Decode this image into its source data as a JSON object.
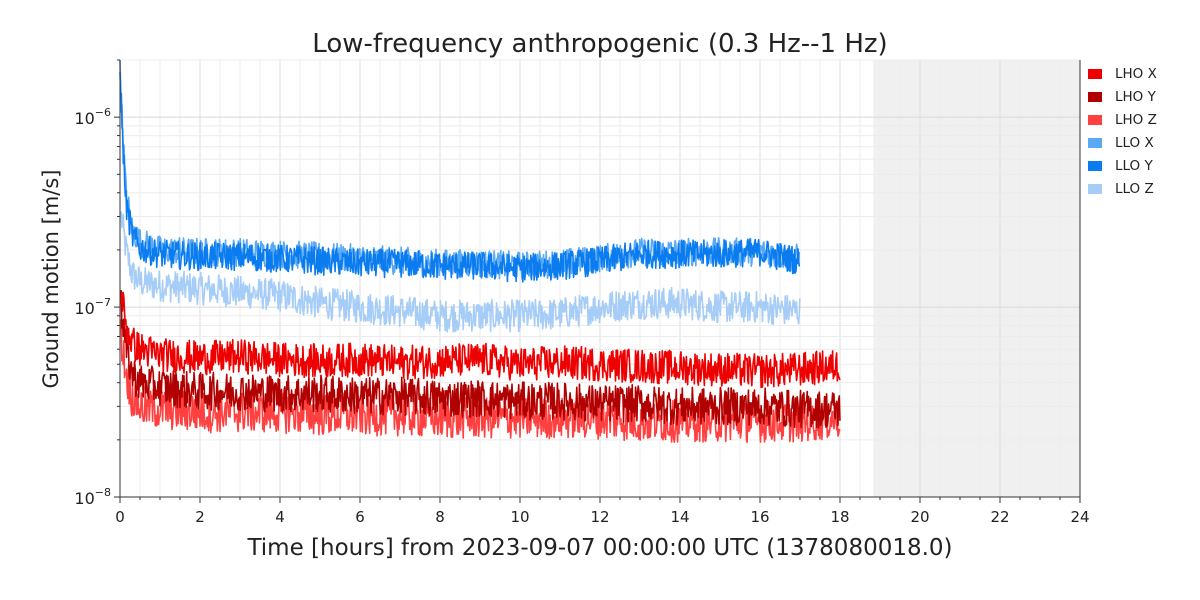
{
  "chart_data": {
    "type": "line",
    "title": "Low-frequency anthropogenic (0.3 Hz--1 Hz)",
    "xlabel": "Time [hours] from 2023-09-07 00:00:00 UTC (1378080018.0)",
    "ylabel": "Ground motion [m/s]",
    "xlim": [
      0,
      24
    ],
    "ylim": [
      1e-08,
      2e-06
    ],
    "yscale": "log",
    "xticks": [
      0,
      2,
      4,
      6,
      8,
      10,
      12,
      14,
      16,
      18,
      20,
      22,
      24
    ],
    "yticks": [
      1e-08,
      1e-07,
      1e-06
    ],
    "ytick_labels": [
      {
        "base": "10",
        "exp": "−8"
      },
      {
        "base": "10",
        "exp": "−7"
      },
      {
        "base": "10",
        "exp": "−6"
      }
    ],
    "grid": true,
    "legend_position": "outside-right",
    "shaded_region": {
      "from": 18.83,
      "to": 24,
      "color": "#f0f0f0"
    },
    "series": [
      {
        "name": "LHO X",
        "color": "#ee0000",
        "x": [
          0.03,
          0.15,
          0.3,
          0.5,
          1,
          2,
          3,
          4,
          5,
          6,
          7,
          8,
          9,
          10,
          11,
          12,
          13,
          14,
          15,
          16,
          17,
          18
        ],
        "y": [
          1.2e-07,
          8e-08,
          6.5e-08,
          6e-08,
          5.6e-08,
          5.4e-08,
          5.5e-08,
          5.3e-08,
          5.2e-08,
          5.3e-08,
          5.1e-08,
          5.2e-08,
          5.3e-08,
          5e-08,
          5.1e-08,
          5e-08,
          4.9e-08,
          4.8e-08,
          4.7e-08,
          4.6e-08,
          4.7e-08,
          4.9e-08
        ]
      },
      {
        "name": "LHO Y",
        "color": "#b00000",
        "x": [
          0.03,
          0.15,
          0.3,
          0.5,
          1,
          2,
          3,
          4,
          5,
          6,
          7,
          8,
          9,
          10,
          11,
          12,
          13,
          14,
          15,
          16,
          17,
          18
        ],
        "y": [
          1e-07,
          6e-08,
          4.5e-08,
          4e-08,
          3.8e-08,
          3.6e-08,
          3.6e-08,
          3.5e-08,
          3.5e-08,
          3.4e-08,
          3.4e-08,
          3.3e-08,
          3.3e-08,
          3.2e-08,
          3.2e-08,
          3.1e-08,
          3.1e-08,
          3e-08,
          3e-08,
          3e-08,
          2.9e-08,
          2.9e-08
        ]
      },
      {
        "name": "LHO Z",
        "color": "#ff4040",
        "x": [
          0.03,
          0.15,
          0.3,
          0.5,
          1,
          2,
          3,
          4,
          5,
          6,
          7,
          8,
          9,
          10,
          11,
          12,
          13,
          14,
          15,
          16,
          17,
          18
        ],
        "y": [
          7e-08,
          4.5e-08,
          3.4e-08,
          3e-08,
          2.9e-08,
          2.8e-08,
          2.8e-08,
          2.8e-08,
          2.7e-08,
          2.7e-08,
          2.7e-08,
          2.6e-08,
          2.6e-08,
          2.6e-08,
          2.6e-08,
          2.6e-08,
          2.5e-08,
          2.5e-08,
          2.5e-08,
          2.5e-08,
          2.5e-08,
          2.6e-08
        ]
      },
      {
        "name": "LLO X",
        "color": "#5aa9f5",
        "x": [
          0,
          0.05,
          0.15,
          0.3,
          0.5,
          1,
          2,
          3,
          4,
          5,
          6,
          7,
          8,
          9,
          10,
          11,
          12,
          13,
          14,
          15,
          16,
          17
        ],
        "y": [
          2e-06,
          1e-06,
          4e-07,
          2.6e-07,
          2.2e-07,
          2e-07,
          1.95e-07,
          1.95e-07,
          1.9e-07,
          1.85e-07,
          1.8e-07,
          1.75e-07,
          1.7e-07,
          1.7e-07,
          1.65e-07,
          1.7e-07,
          1.8e-07,
          1.95e-07,
          1.95e-07,
          1.95e-07,
          1.95e-07,
          1.8e-07
        ]
      },
      {
        "name": "LLO Y",
        "color": "#0a7cf0",
        "x": [
          0,
          0.05,
          0.15,
          0.3,
          0.5,
          1,
          2,
          3,
          4,
          5,
          6,
          7,
          8,
          9,
          10,
          11,
          12,
          13,
          14,
          15,
          16,
          17
        ],
        "y": [
          2e-06,
          9e-07,
          3.5e-07,
          2.4e-07,
          2.05e-07,
          1.9e-07,
          1.85e-07,
          1.85e-07,
          1.8e-07,
          1.75e-07,
          1.7e-07,
          1.7e-07,
          1.65e-07,
          1.65e-07,
          1.6e-07,
          1.65e-07,
          1.75e-07,
          1.9e-07,
          1.9e-07,
          1.9e-07,
          1.95e-07,
          1.75e-07
        ]
      },
      {
        "name": "LLO Z",
        "color": "#a6cdf7",
        "x": [
          0.03,
          0.15,
          0.3,
          0.5,
          1,
          2,
          3,
          4,
          5,
          6,
          7,
          8,
          9,
          10,
          11,
          12,
          13,
          14,
          15,
          16,
          17
        ],
        "y": [
          3e-07,
          2e-07,
          1.5e-07,
          1.35e-07,
          1.3e-07,
          1.25e-07,
          1.2e-07,
          1.15e-07,
          1.05e-07,
          1e-07,
          9.5e-08,
          9e-08,
          9e-08,
          9e-08,
          9.2e-08,
          1e-07,
          1.05e-07,
          1.05e-07,
          1e-07,
          1e-07,
          9.5e-08
        ]
      }
    ]
  }
}
